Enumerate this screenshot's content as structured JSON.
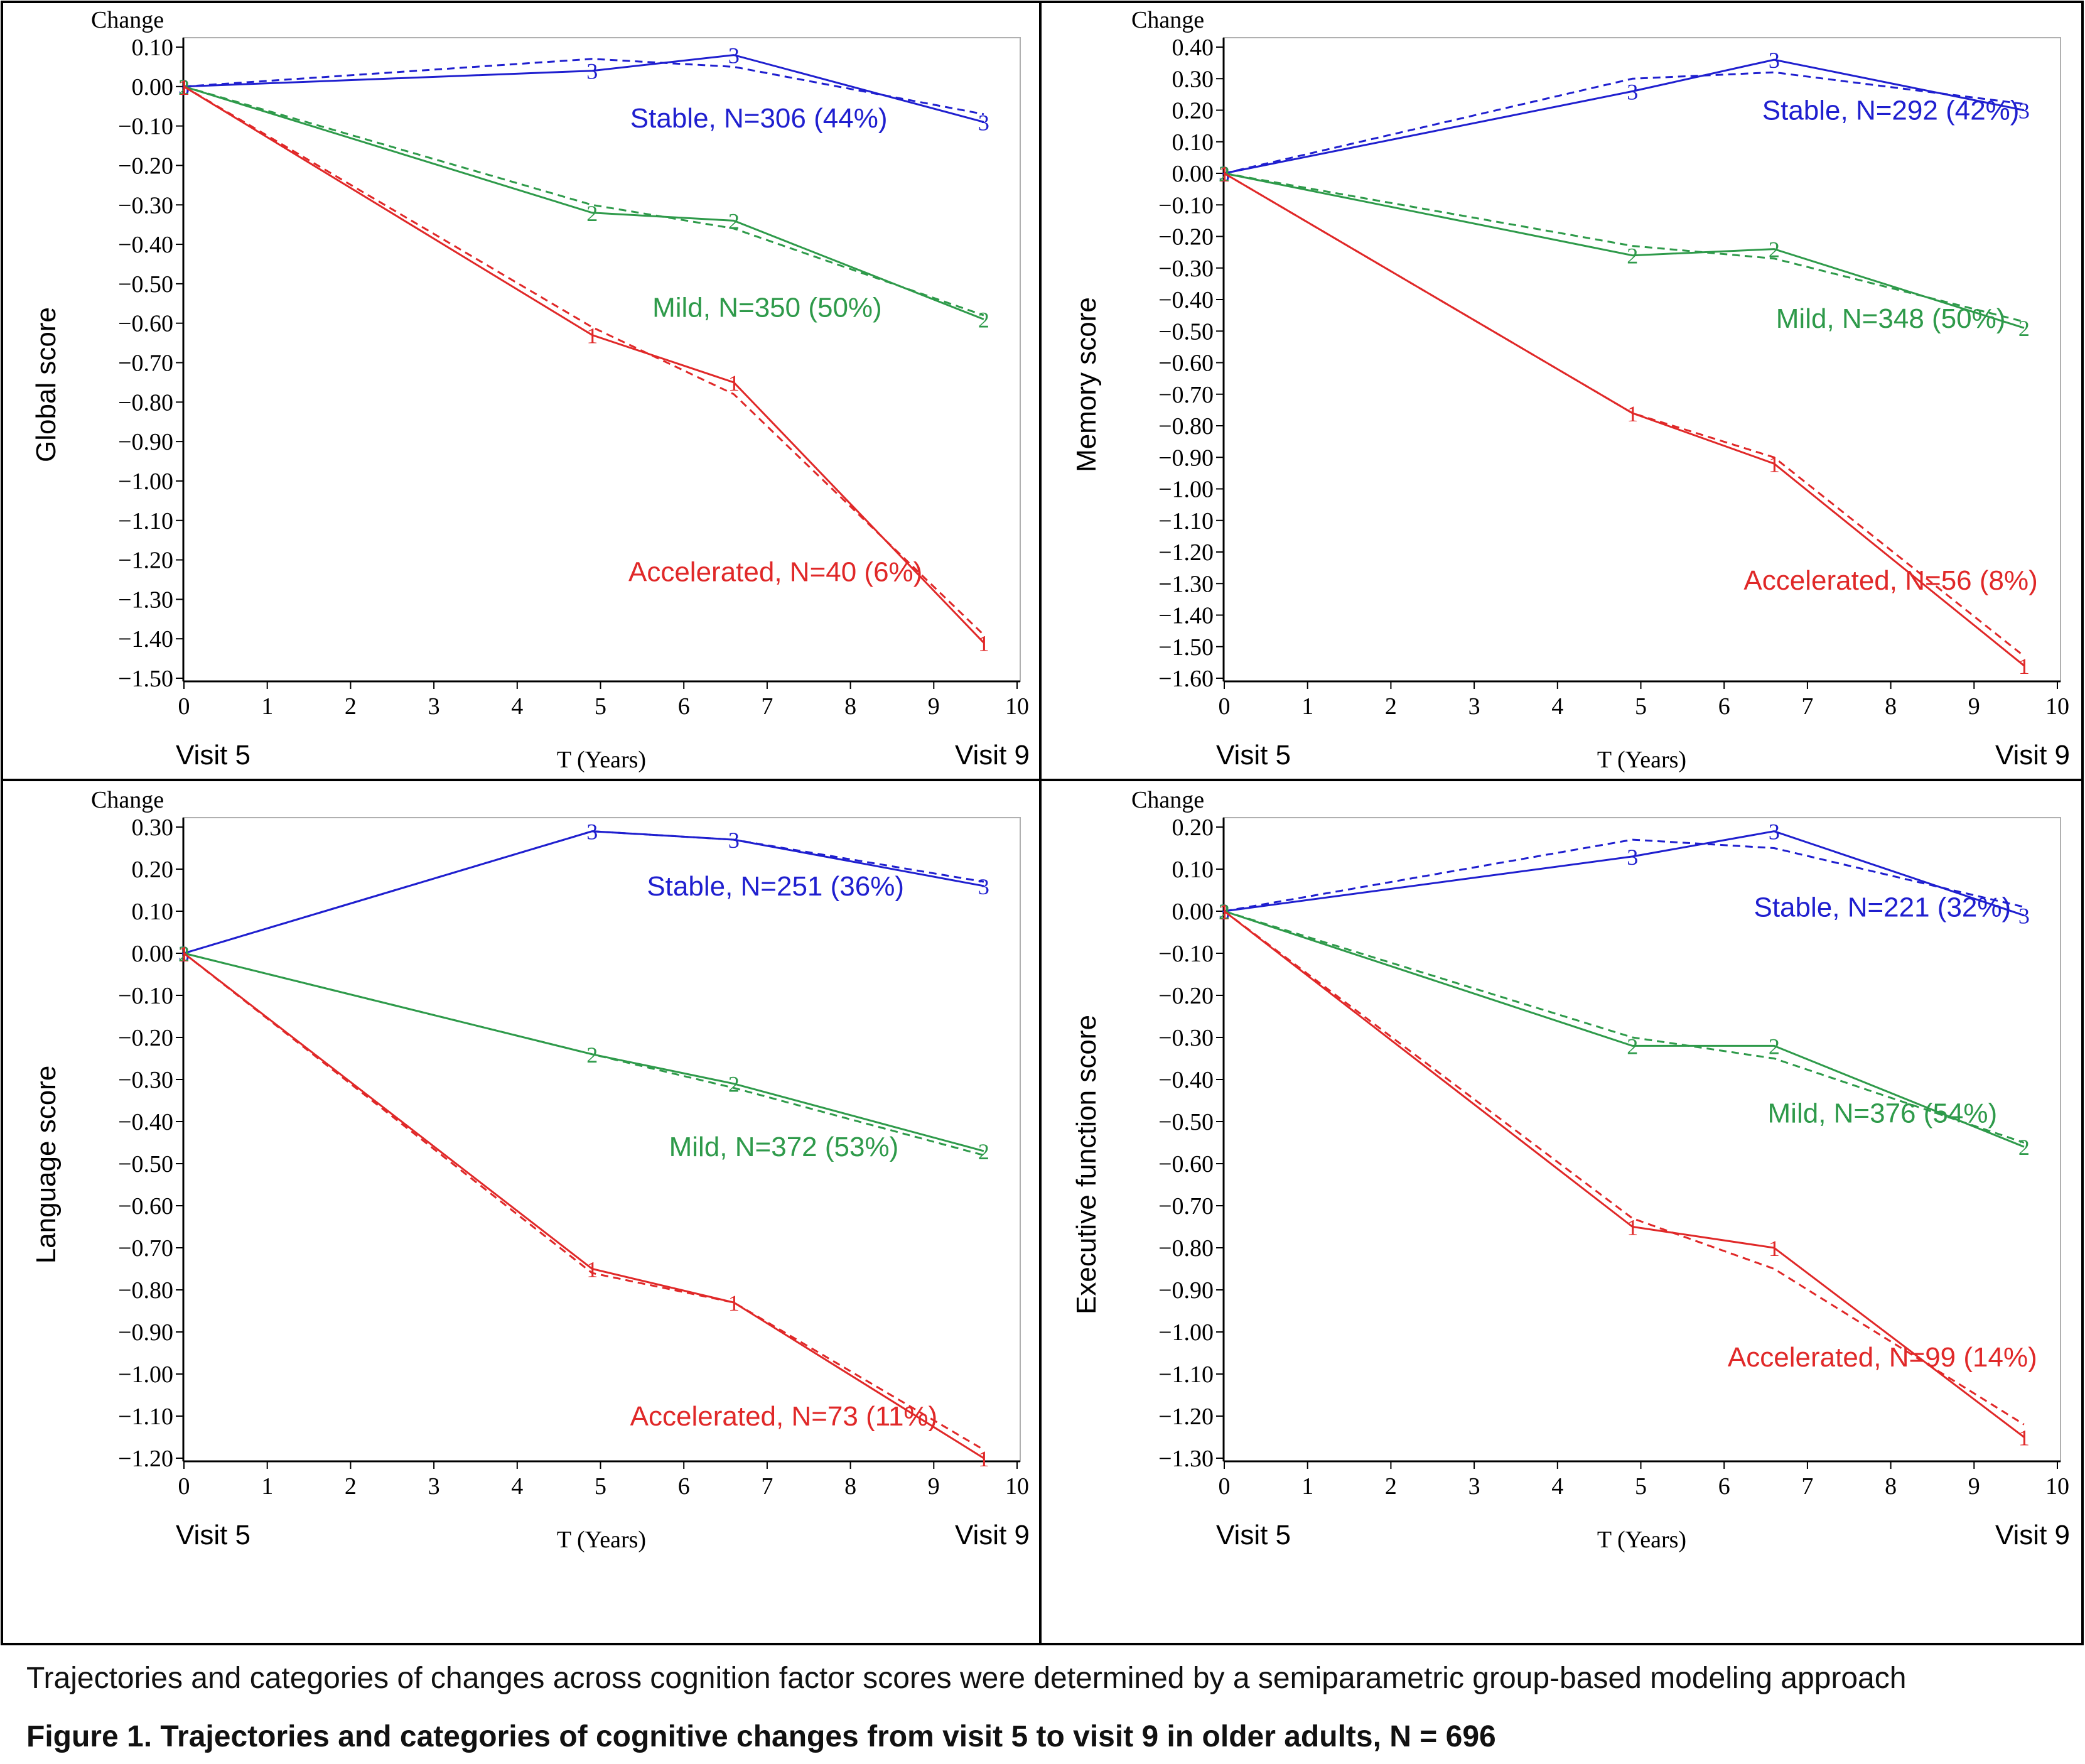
{
  "colors": {
    "stable": "#1f1fcf",
    "mild": "#2e9a4a",
    "accelerated": "#e02828",
    "axis": "#000000",
    "frame": "#b0b0b0"
  },
  "caption": {
    "note": "Trajectories and categories of changes across cognition factor scores were determined by a semiparametric group-based modeling approach",
    "title": "Figure 1. Trajectories and categories of cognitive changes from visit 5 to visit 9 in older adults, N = 696"
  },
  "chart_data": [
    {
      "type": "line",
      "panel": "top-left",
      "ylabel": "Global score",
      "ycap": "Change",
      "xlabel": "T (Years)",
      "xlim": [
        0,
        10
      ],
      "ylim": [
        -1.5,
        0.1
      ],
      "x_ticks": [
        "0",
        "1",
        "2",
        "3",
        "4",
        "5",
        "6",
        "7",
        "8",
        "9",
        "10"
      ],
      "y_ticks": [
        "0.10",
        "0.00",
        "−0.10",
        "−0.20",
        "−0.30",
        "−0.40",
        "−0.50",
        "−0.60",
        "−0.70",
        "−0.80",
        "−0.90",
        "−1.00",
        "−1.10",
        "−1.20",
        "−1.30",
        "−1.40",
        "−1.50"
      ],
      "visit_start": "Visit 5",
      "visit_end": "Visit 9",
      "x": [
        0,
        4.9,
        6.6,
        9.6
      ],
      "series": [
        {
          "key": "stable",
          "marker": "3",
          "label": "Stable, N=306 (44%)",
          "observed": [
            0,
            0.04,
            0.08,
            -0.09
          ],
          "predicted": [
            0,
            0.07,
            0.05,
            -0.07
          ],
          "label_pos": [
            6.9,
            -0.08
          ]
        },
        {
          "key": "mild",
          "marker": "2",
          "label": "Mild, N=350 (50%)",
          "observed": [
            0,
            -0.32,
            -0.34,
            -0.59
          ],
          "predicted": [
            0,
            -0.3,
            -0.36,
            -0.58
          ],
          "label_pos": [
            7.0,
            -0.56
          ]
        },
        {
          "key": "accelerated",
          "marker": "1",
          "label": "Accelerated, N=40 (6%)",
          "observed": [
            0,
            -0.63,
            -0.75,
            -1.41
          ],
          "predicted": [
            0,
            -0.61,
            -0.78,
            -1.39
          ],
          "label_pos": [
            7.1,
            -1.23
          ]
        }
      ]
    },
    {
      "type": "line",
      "panel": "top-right",
      "ylabel": "Memory score",
      "ycap": "Change",
      "xlabel": "T (Years)",
      "xlim": [
        0,
        10
      ],
      "ylim": [
        -1.6,
        0.4
      ],
      "x_ticks": [
        "0",
        "1",
        "2",
        "3",
        "4",
        "5",
        "6",
        "7",
        "8",
        "9",
        "10"
      ],
      "y_ticks": [
        "0.40",
        "0.30",
        "0.20",
        "0.10",
        "0.00",
        "−0.10",
        "−0.20",
        "−0.30",
        "−0.40",
        "−0.50",
        "−0.60",
        "−0.70",
        "−0.80",
        "−0.90",
        "−1.00",
        "−1.10",
        "−1.20",
        "−1.30",
        "−1.40",
        "−1.50",
        "−1.60"
      ],
      "visit_start": "Visit 5",
      "visit_end": "Visit 9",
      "x": [
        0,
        4.9,
        6.6,
        9.6
      ],
      "series": [
        {
          "key": "stable",
          "marker": "3",
          "label": "Stable, N=292 (42%)",
          "observed": [
            0,
            0.26,
            0.36,
            0.2
          ],
          "predicted": [
            0,
            0.3,
            0.32,
            0.22
          ],
          "label_pos": [
            8.0,
            0.2
          ]
        },
        {
          "key": "mild",
          "marker": "2",
          "label": "Mild, N=348 (50%)",
          "observed": [
            0,
            -0.26,
            -0.24,
            -0.49
          ],
          "predicted": [
            0,
            -0.23,
            -0.27,
            -0.47
          ],
          "label_pos": [
            8.0,
            -0.46
          ]
        },
        {
          "key": "accelerated",
          "marker": "1",
          "label": "Accelerated, N=56 (8%)",
          "observed": [
            0,
            -0.76,
            -0.92,
            -1.56
          ],
          "predicted": [
            0,
            -0.76,
            -0.9,
            -1.53
          ],
          "label_pos": [
            8.0,
            -1.29
          ]
        }
      ]
    },
    {
      "type": "line",
      "panel": "bottom-left",
      "ylabel": "Language  score",
      "ycap": "Change",
      "xlabel": "T (Years)",
      "xlim": [
        0,
        10
      ],
      "ylim": [
        -1.2,
        0.3
      ],
      "x_ticks": [
        "0",
        "1",
        "2",
        "3",
        "4",
        "5",
        "6",
        "7",
        "8",
        "9",
        "10"
      ],
      "y_ticks": [
        "0.30",
        "0.20",
        "0.10",
        "0.00",
        "−0.10",
        "−0.20",
        "−0.30",
        "−0.40",
        "−0.50",
        "−0.60",
        "−0.70",
        "−0.80",
        "−0.90",
        "−1.00",
        "−1.10",
        "−1.20"
      ],
      "visit_start": "Visit 5",
      "visit_end": "Visit 9",
      "x": [
        0,
        4.9,
        6.6,
        9.6
      ],
      "series": [
        {
          "key": "stable",
          "marker": "3",
          "label": "Stable, N=251 (36%)",
          "observed": [
            0,
            0.29,
            0.27,
            0.16
          ],
          "predicted": [
            0,
            0.29,
            0.27,
            0.17
          ],
          "label_pos": [
            7.1,
            0.16
          ]
        },
        {
          "key": "mild",
          "marker": "2",
          "label": "Mild, N=372 (53%)",
          "observed": [
            0,
            -0.24,
            -0.31,
            -0.47
          ],
          "predicted": [
            0,
            -0.24,
            -0.32,
            -0.48
          ],
          "label_pos": [
            7.2,
            -0.46
          ]
        },
        {
          "key": "accelerated",
          "marker": "1",
          "label": "Accelerated, N=73 (11%)",
          "observed": [
            0,
            -0.75,
            -0.83,
            -1.2
          ],
          "predicted": [
            0,
            -0.76,
            -0.83,
            -1.18
          ],
          "label_pos": [
            7.2,
            -1.1
          ]
        }
      ]
    },
    {
      "type": "line",
      "panel": "bottom-right",
      "ylabel": "Executive function score",
      "ycap": "Change",
      "xlabel": "T (Years)",
      "xlim": [
        0,
        10
      ],
      "ylim": [
        -1.3,
        0.2
      ],
      "x_ticks": [
        "0",
        "1",
        "2",
        "3",
        "4",
        "5",
        "6",
        "7",
        "8",
        "9",
        "10"
      ],
      "y_ticks": [
        "0.20",
        "0.10",
        "0.00",
        "−0.10",
        "−0.20",
        "−0.30",
        "−0.40",
        "−0.50",
        "−0.60",
        "−0.70",
        "−0.80",
        "−0.90",
        "−1.00",
        "−1.10",
        "−1.20",
        "−1.30"
      ],
      "visit_start": "Visit 5",
      "visit_end": "Visit 9",
      "x": [
        0,
        4.9,
        6.6,
        9.6
      ],
      "series": [
        {
          "key": "stable",
          "marker": "3",
          "label": "Stable, N=221 (32%)",
          "observed": [
            0,
            0.13,
            0.19,
            -0.01
          ],
          "predicted": [
            0,
            0.17,
            0.15,
            0.01
          ],
          "label_pos": [
            7.9,
            0.01
          ]
        },
        {
          "key": "mild",
          "marker": "2",
          "label": "Mild, N=376 (54%)",
          "observed": [
            0,
            -0.32,
            -0.32,
            -0.56
          ],
          "predicted": [
            0,
            -0.3,
            -0.35,
            -0.55
          ],
          "label_pos": [
            7.9,
            -0.48
          ]
        },
        {
          "key": "accelerated",
          "marker": "1",
          "label": "Accelerated, N=99 (14%)",
          "observed": [
            0,
            -0.75,
            -0.8,
            -1.25
          ],
          "predicted": [
            0,
            -0.73,
            -0.85,
            -1.22
          ],
          "label_pos": [
            7.9,
            -1.06
          ]
        }
      ]
    }
  ]
}
